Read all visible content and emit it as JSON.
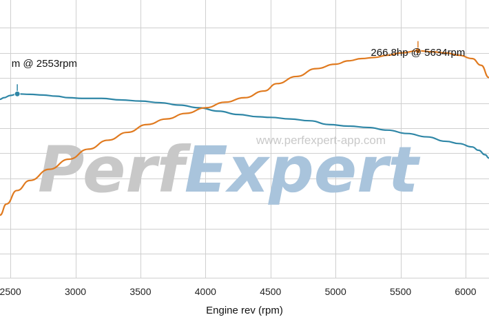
{
  "chart_data": {
    "type": "line",
    "xlabel": "Engine rev (rpm)",
    "xlim": [
      2420,
      6180
    ],
    "xticks": [
      2500,
      3000,
      3500,
      4000,
      4500,
      5000,
      5500,
      6000
    ],
    "grid": true,
    "series": [
      {
        "color": "#2e86a6",
        "ylim": [
          0,
          10
        ],
        "points": [
          [
            2420,
            7.98
          ],
          [
            2450,
            8.05
          ],
          [
            2500,
            8.15
          ],
          [
            2553,
            8.22
          ],
          [
            2650,
            8.2
          ],
          [
            2750,
            8.17
          ],
          [
            2850,
            8.12
          ],
          [
            2950,
            8.05
          ],
          [
            3050,
            8.02
          ],
          [
            3200,
            8.02
          ],
          [
            3350,
            7.95
          ],
          [
            3500,
            7.9
          ],
          [
            3650,
            7.83
          ],
          [
            3800,
            7.72
          ],
          [
            3950,
            7.6
          ],
          [
            4100,
            7.45
          ],
          [
            4250,
            7.3
          ],
          [
            4400,
            7.2
          ],
          [
            4500,
            7.17
          ],
          [
            4650,
            7.1
          ],
          [
            4800,
            7.02
          ],
          [
            4950,
            6.85
          ],
          [
            5100,
            6.78
          ],
          [
            5250,
            6.72
          ],
          [
            5400,
            6.6
          ],
          [
            5550,
            6.45
          ],
          [
            5700,
            6.3
          ],
          [
            5850,
            6.1
          ],
          [
            5950,
            6.0
          ],
          [
            6050,
            5.85
          ],
          [
            6100,
            5.7
          ],
          [
            6150,
            5.5
          ],
          [
            6180,
            5.35
          ]
        ],
        "peak": {
          "x": 2553,
          "label": "m @ 2553rpm"
        }
      },
      {
        "color": "#e07a1f",
        "ylim": [
          0,
          10
        ],
        "points": [
          [
            2420,
            2.8
          ],
          [
            2470,
            3.3
          ],
          [
            2550,
            3.9
          ],
          [
            2650,
            4.35
          ],
          [
            2800,
            4.85
          ],
          [
            2950,
            5.3
          ],
          [
            3100,
            5.75
          ],
          [
            3250,
            6.15
          ],
          [
            3400,
            6.5
          ],
          [
            3550,
            6.85
          ],
          [
            3700,
            7.1
          ],
          [
            3850,
            7.35
          ],
          [
            4000,
            7.6
          ],
          [
            4150,
            7.85
          ],
          [
            4300,
            8.05
          ],
          [
            4450,
            8.35
          ],
          [
            4550,
            8.68
          ],
          [
            4700,
            9.0
          ],
          [
            4850,
            9.35
          ],
          [
            5000,
            9.55
          ],
          [
            5100,
            9.7
          ],
          [
            5200,
            9.8
          ],
          [
            5300,
            9.85
          ],
          [
            5400,
            9.95
          ],
          [
            5500,
            10.05
          ],
          [
            5634,
            10.15
          ],
          [
            5750,
            10.1
          ],
          [
            5850,
            10.05
          ],
          [
            5950,
            9.95
          ],
          [
            6050,
            9.8
          ],
          [
            6120,
            9.5
          ],
          [
            6180,
            8.95
          ]
        ],
        "peak": {
          "x": 5634,
          "label": "266.8hp @ 5634rpm"
        }
      }
    ]
  },
  "watermark": {
    "logo_part1": "Perf",
    "logo_part2": "Expert",
    "url": "www.perfexpert-app.com",
    "color_part1": "#c8c8c8",
    "color_part2": "#a9c4dc"
  }
}
